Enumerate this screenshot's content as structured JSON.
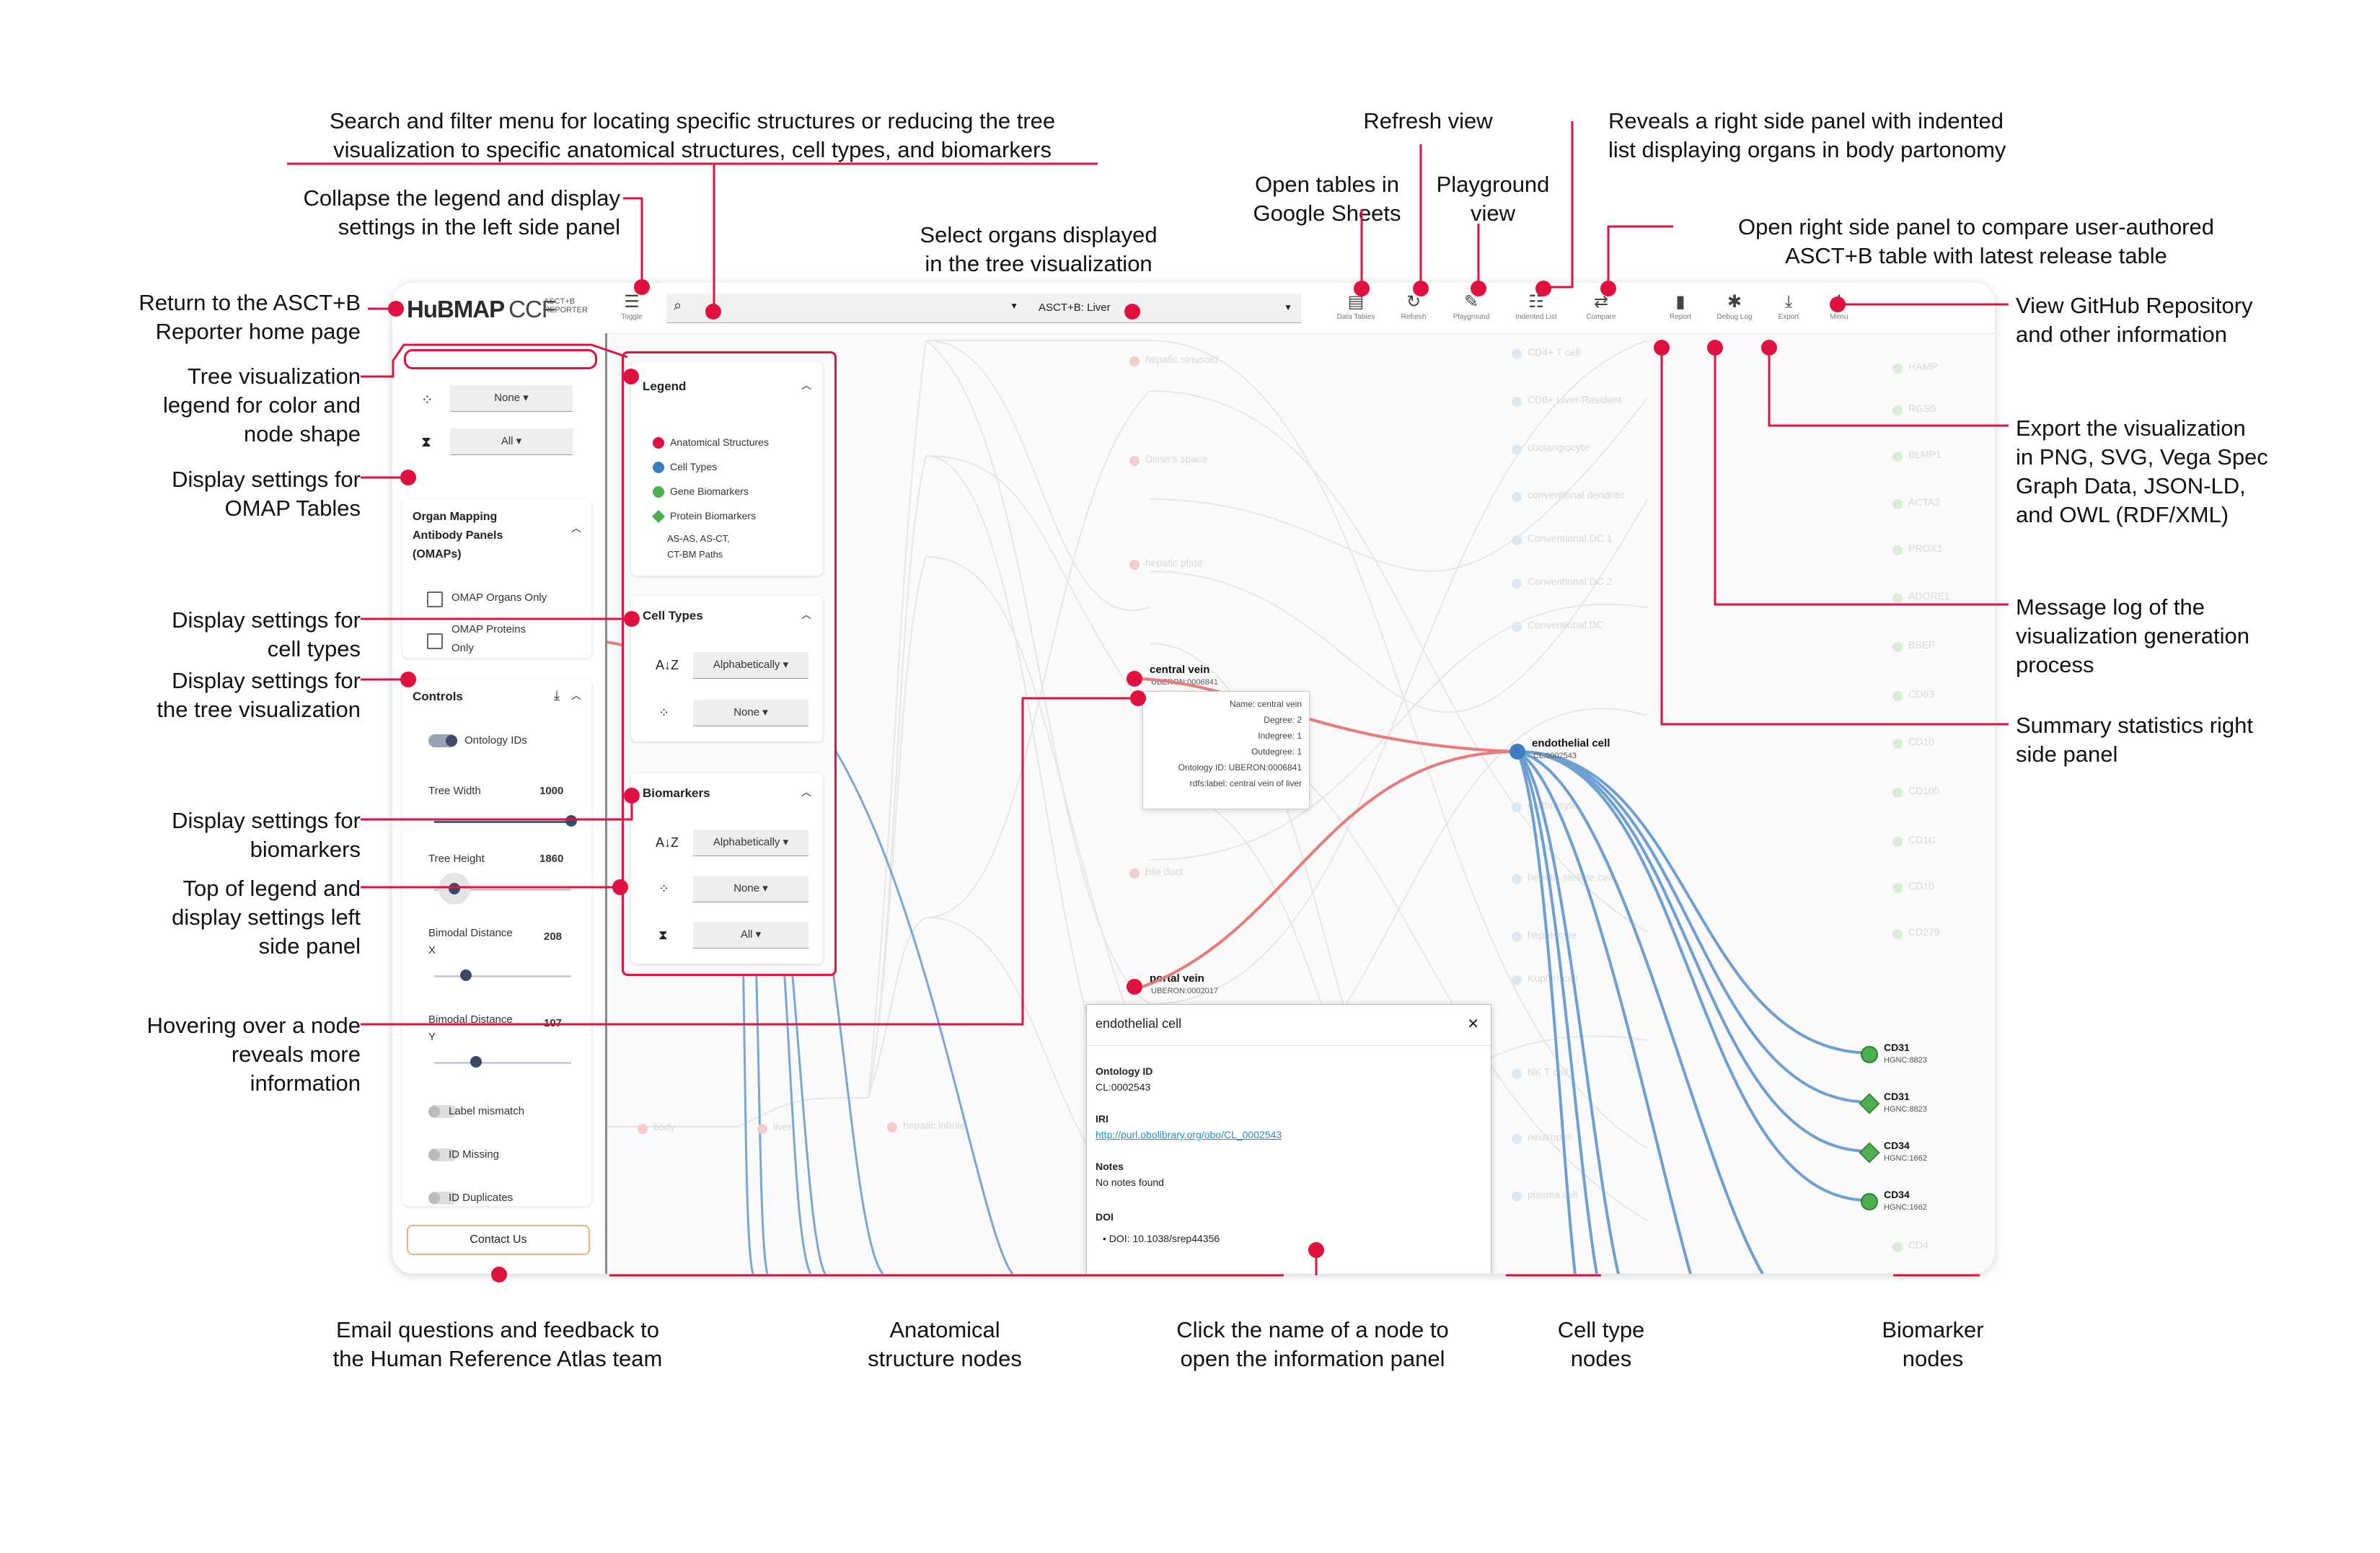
{
  "app": {
    "logo_main": "HuBMAP",
    "logo_ccf": "CCF",
    "logo_sub1": "ASCT+B",
    "logo_sub2": "REPORTER",
    "toggle_label": "Toggle",
    "organ_select_value": "ASCT+B: Liver",
    "toolbar": [
      {
        "label": "Data Tables",
        "icon": "table-icon"
      },
      {
        "label": "Refresh",
        "icon": "refresh-icon"
      },
      {
        "label": "Playground",
        "icon": "edit-icon"
      },
      {
        "label": "Indented List",
        "icon": "indented-list-icon"
      },
      {
        "label": "Compare",
        "icon": "compare-icon"
      },
      {
        "label": "Report",
        "icon": "bar-chart-icon"
      },
      {
        "label": "Debug Log",
        "icon": "bug-icon"
      },
      {
        "label": "Export",
        "icon": "download-icon"
      },
      {
        "label": "Menu",
        "icon": "more-vert-icon"
      }
    ],
    "left": {
      "none_value": "None",
      "all_value": "All",
      "omap_title": "Organ Mapping Antibody Panels (OMAPs)",
      "omap_organs_only": "OMAP Organs Only",
      "omap_proteins_only": "OMAP Proteins Only",
      "controls_title": "Controls",
      "ontology_ids": "Ontology IDs",
      "tree_width_label": "Tree Width",
      "tree_width_value": "1000",
      "tree_height_label": "Tree Height",
      "tree_height_value": "1860",
      "bimodal_x_label": "Bimodal Distance X",
      "bimodal_x_value": "208",
      "bimodal_y_label": "Bimodal Distance Y",
      "bimodal_y_value": "107",
      "label_mismatch": "Label mismatch",
      "id_missing": "ID Missing",
      "id_duplicates": "ID Duplicates",
      "contact_us": "Contact Us"
    },
    "legend": {
      "title": "Legend",
      "items": [
        {
          "label": "Anatomical Structures",
          "color": "#e0113f",
          "shape": "circle"
        },
        {
          "label": "Cell Types",
          "color": "#3b7dbe",
          "shape": "circle"
        },
        {
          "label": "Gene Biomarkers",
          "color": "#4caf50",
          "shape": "circle"
        },
        {
          "label": "Protein Biomarkers",
          "color": "#4caf50",
          "shape": "diamond"
        }
      ],
      "paths_label": "AS-AS, AS-CT, CT-BM Paths"
    },
    "cell_types": {
      "title": "Cell Types",
      "sort": "Alphabetically",
      "size": "None"
    },
    "biomarkers": {
      "title": "Biomarkers",
      "sort": "Alphabetically",
      "size": "None",
      "filter": "All"
    },
    "nodes": {
      "central_vein": "central vein",
      "central_vein_id": "UBERON:0006841",
      "portal_vein": "portal vein",
      "portal_vein_id": "UBERON:0002017",
      "endothelial": "endothelial cell",
      "endothelial_id": "CL:0002543",
      "bm": [
        {
          "name": "CD31",
          "id": "HGNC:8823"
        },
        {
          "name": "CD31",
          "id": "HGNC:8823"
        },
        {
          "name": "CD34",
          "id": "HGNC:1662"
        },
        {
          "name": "CD34",
          "id": "HGNC:1662"
        }
      ]
    },
    "tooltip": {
      "name": "Name: central vein",
      "degree": "Degree: 2",
      "indegree": "Indegree: 1",
      "outdegree": "Outdegree: 1",
      "ontology_id": "Ontology ID: UBERON:0006841",
      "rdfs_label": "rdfs:label: central vein of liver"
    },
    "info": {
      "title": "endothelial cell",
      "ontology_h": "Ontology ID",
      "ontology_v": "CL:0002543",
      "iri_h": "IRI",
      "iri_v": "http://purl.obolibrary.org/obo/CL_0002543",
      "notes_h": "Notes",
      "notes_v": "No notes found",
      "doi_h": "DOI",
      "doi_v": "DOI: 10.1038/srep44356"
    },
    "faint_as": [
      "hepatic sinusoid",
      "Disse's space",
      "hepatic plate",
      "bile duct",
      "body",
      "liver",
      "hepatic lobule"
    ],
    "faint_ct": [
      "CD4+ T cell",
      "CD8+ Liver-Resident",
      "cholangiocyte",
      "conventional dendritic",
      "Conventional DC 1",
      "Conventional DC 2",
      "Conventional DC",
      "erythrocyte",
      "hepatic stellate cell",
      "hepatocyte",
      "Kupffer cell",
      "NK T cell",
      "neutrophil",
      "plasma cell"
    ],
    "faint_bm": [
      "HAMP",
      "RGS5",
      "BLMP1",
      "ACTA2",
      "PROX1",
      "ADORE1",
      "BSEP",
      "CD63",
      "CD10",
      "CD105",
      "CD1C",
      "CD10",
      "CD279",
      "CD4"
    ]
  },
  "annotations": {
    "search": "Search and filter menu for locating specific structures or reducing the tree\nvisualization to specific anatomical structures, cell types, and biomarkers",
    "collapse": "Collapse the legend and display\nsettings in the left side panel",
    "select_organs": "Select organs displayed\nin the tree visualization",
    "open_tables": "Open tables in\nGoogle Sheets",
    "refresh": "Refresh view",
    "playground": "Playground\nview",
    "indented": "Reveals a right side panel with indented\nlist displaying organs in body partonomy",
    "compare": "Open right side panel to compare user-authored\nASCT+B table with latest release table",
    "home": "Return to the ASCT+B\nReporter home page",
    "legend": "Tree visualization\nlegend for color and\nnode shape",
    "omap": "Display settings for\nOMAP Tables",
    "cell_types": "Display settings for\ncell types",
    "tree_vis": "Display settings for\nthe tree visualization",
    "biomarkers": "Display settings for\nbiomarkers",
    "top_legend": "Top of legend and\ndisplay settings left\nside panel",
    "hover": "Hovering over a node\nreveals more\ninformation",
    "github": "View GitHub Repository\nand other information",
    "export": "Export the visualization\nin PNG, SVG, Vega Spec\nGraph Data, JSON-LD,\nand OWL (RDF/XML)",
    "message_log": "Message log of the\nvisualization generation\nprocess",
    "summary": "Summary statistics right\nside panel",
    "email": "Email questions and feedback to\nthe Human Reference Atlas team",
    "as_nodes": "Anatomical\nstructure nodes",
    "click_name": "Click the name of a node to\nopen the information panel",
    "ct_nodes": "Cell type\nnodes",
    "bm_nodes": "Biomarker\nnodes"
  }
}
